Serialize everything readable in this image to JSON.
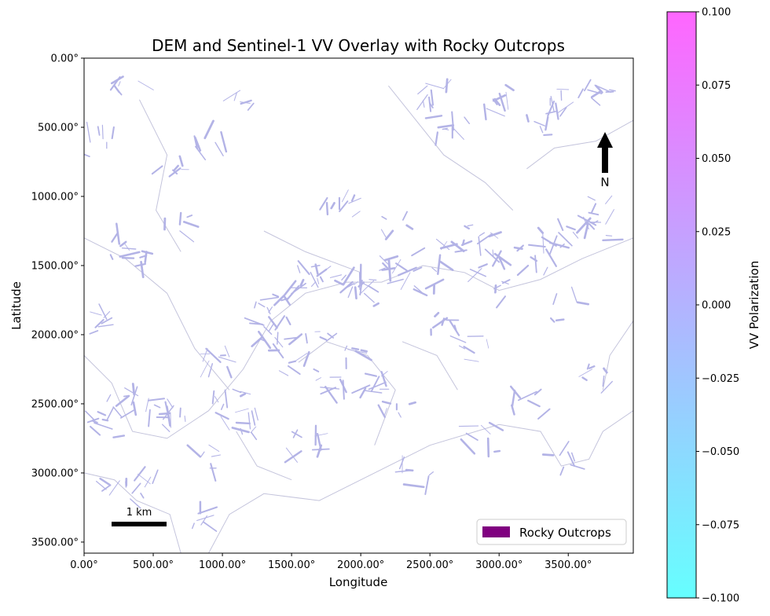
{
  "chart_data": {
    "type": "heatmap",
    "title": "DEM and Sentinel-1 VV Overlay with Rocky Outcrops",
    "xlabel": "Longitude",
    "ylabel": "Latitude",
    "xlim": [
      0,
      3970
    ],
    "ylim": [
      3580,
      0
    ],
    "x_ticks": [
      {
        "value": 0,
        "label": "0.00°"
      },
      {
        "value": 500,
        "label": "500.00°"
      },
      {
        "value": 1000,
        "label": "1000.00°"
      },
      {
        "value": 1500,
        "label": "1500.00°"
      },
      {
        "value": 2000,
        "label": "2000.00°"
      },
      {
        "value": 2500,
        "label": "2500.00°"
      },
      {
        "value": 3000,
        "label": "3000.00°"
      },
      {
        "value": 3500,
        "label": "3500.00°"
      }
    ],
    "y_ticks": [
      {
        "value": 0,
        "label": "0.00°"
      },
      {
        "value": 500,
        "label": "500.00°"
      },
      {
        "value": 1000,
        "label": "1000.00°"
      },
      {
        "value": 1500,
        "label": "1500.00°"
      },
      {
        "value": 2000,
        "label": "2000.00°"
      },
      {
        "value": 2500,
        "label": "2500.00°"
      },
      {
        "value": 3000,
        "label": "3000.00°"
      },
      {
        "value": 3500,
        "label": "3500.00°"
      }
    ],
    "overlay_color": "#b3b3e6",
    "legend": {
      "label": "Rocky Outcrops",
      "color": "#800080",
      "position": "lower-right"
    },
    "north_arrow": {
      "label": "N",
      "position": "upper-right"
    },
    "scale_bar": {
      "label": "1 km",
      "position": "lower-left"
    },
    "colorbar": {
      "label": "VV Polarization",
      "vmin": -0.1,
      "vmax": 0.1,
      "colormap": "cool",
      "color_low": "#66ffff",
      "color_mid": "#b3b3ff",
      "color_high": "#ff66ff",
      "ticks": [
        {
          "value": 0.1,
          "label": "0.100"
        },
        {
          "value": 0.075,
          "label": "0.075"
        },
        {
          "value": 0.05,
          "label": "0.050"
        },
        {
          "value": 0.025,
          "label": "0.025"
        },
        {
          "value": 0.0,
          "label": "0.000"
        },
        {
          "value": -0.025,
          "label": "−0.025"
        },
        {
          "value": -0.05,
          "label": "−0.050"
        },
        {
          "value": -0.075,
          "label": "−0.075"
        },
        {
          "value": -0.1,
          "label": "−0.100"
        }
      ]
    },
    "outcrop_patches": [
      {
        "x": 90,
        "y": 600
      },
      {
        "x": 180,
        "y": 1900
      },
      {
        "x": 260,
        "y": 1350
      },
      {
        "x": 350,
        "y": 250
      },
      {
        "x": 420,
        "y": 1450
      },
      {
        "x": 300,
        "y": 2480
      },
      {
        "x": 150,
        "y": 2650
      },
      {
        "x": 500,
        "y": 2540
      },
      {
        "x": 700,
        "y": 2600
      },
      {
        "x": 1050,
        "y": 2500
      },
      {
        "x": 1150,
        "y": 2650
      },
      {
        "x": 1000,
        "y": 2200
      },
      {
        "x": 1250,
        "y": 2000
      },
      {
        "x": 1350,
        "y": 1850
      },
      {
        "x": 1450,
        "y": 1720
      },
      {
        "x": 1650,
        "y": 1600
      },
      {
        "x": 1800,
        "y": 1550
      },
      {
        "x": 1950,
        "y": 1630
      },
      {
        "x": 2050,
        "y": 1700
      },
      {
        "x": 2150,
        "y": 1580
      },
      {
        "x": 2300,
        "y": 1480
      },
      {
        "x": 2450,
        "y": 1620
      },
      {
        "x": 2600,
        "y": 1450
      },
      {
        "x": 2700,
        "y": 1300
      },
      {
        "x": 2850,
        "y": 1350
      },
      {
        "x": 2950,
        "y": 1500
      },
      {
        "x": 3100,
        "y": 1700
      },
      {
        "x": 3250,
        "y": 1450
      },
      {
        "x": 3400,
        "y": 1300
      },
      {
        "x": 3600,
        "y": 1200
      },
      {
        "x": 3750,
        "y": 1100
      },
      {
        "x": 3880,
        "y": 1230
      },
      {
        "x": 3500,
        "y": 300
      },
      {
        "x": 3720,
        "y": 270
      },
      {
        "x": 3300,
        "y": 500
      },
      {
        "x": 1400,
        "y": 2100
      },
      {
        "x": 1550,
        "y": 2250
      },
      {
        "x": 1700,
        "y": 2000
      },
      {
        "x": 1900,
        "y": 2150
      },
      {
        "x": 2100,
        "y": 2350
      },
      {
        "x": 2250,
        "y": 2500
      },
      {
        "x": 1800,
        "y": 2400
      },
      {
        "x": 1600,
        "y": 2800
      },
      {
        "x": 900,
        "y": 2900
      },
      {
        "x": 800,
        "y": 3300
      },
      {
        "x": 500,
        "y": 3100
      },
      {
        "x": 250,
        "y": 3150
      },
      {
        "x": 2600,
        "y": 1900
      },
      {
        "x": 2800,
        "y": 2100
      },
      {
        "x": 3500,
        "y": 1800
      },
      {
        "x": 3700,
        "y": 2300
      },
      {
        "x": 3200,
        "y": 2500
      },
      {
        "x": 3450,
        "y": 2900
      },
      {
        "x": 2900,
        "y": 2750
      },
      {
        "x": 2400,
        "y": 3000
      },
      {
        "x": 600,
        "y": 800
      },
      {
        "x": 700,
        "y": 1200
      },
      {
        "x": 900,
        "y": 600
      },
      {
        "x": 1150,
        "y": 300
      },
      {
        "x": 2500,
        "y": 250
      },
      {
        "x": 2650,
        "y": 500
      },
      {
        "x": 3000,
        "y": 300
      },
      {
        "x": 2250,
        "y": 1200
      },
      {
        "x": 1850,
        "y": 1050
      }
    ],
    "contour_lines": [
      [
        [
          0,
          3000
        ],
        [
          220,
          3050
        ],
        [
          380,
          3200
        ],
        [
          620,
          3300
        ],
        [
          700,
          3580
        ]
      ],
      [
        [
          900,
          3580
        ],
        [
          1050,
          3300
        ],
        [
          1300,
          3150
        ],
        [
          1700,
          3200
        ],
        [
          2100,
          3000
        ],
        [
          2500,
          2800
        ],
        [
          3000,
          2650
        ],
        [
          3300,
          2700
        ],
        [
          3450,
          2950
        ],
        [
          3650,
          2900
        ],
        [
          3750,
          2700
        ],
        [
          3970,
          2550
        ]
      ],
      [
        [
          0,
          2150
        ],
        [
          200,
          2350
        ],
        [
          350,
          2700
        ],
        [
          600,
          2750
        ],
        [
          900,
          2550
        ],
        [
          1150,
          2250
        ],
        [
          1350,
          1900
        ],
        [
          1600,
          1700
        ],
        [
          1900,
          1620
        ],
        [
          2150,
          1620
        ],
        [
          2450,
          1500
        ],
        [
          2750,
          1550
        ],
        [
          3000,
          1680
        ],
        [
          3300,
          1600
        ],
        [
          3600,
          1450
        ],
        [
          3970,
          1300
        ]
      ],
      [
        [
          0,
          1300
        ],
        [
          300,
          1450
        ],
        [
          600,
          1700
        ],
        [
          800,
          2100
        ],
        [
          1050,
          2400
        ]
      ],
      [
        [
          1300,
          1250
        ],
        [
          1600,
          1400
        ],
        [
          2000,
          1550
        ]
      ],
      [
        [
          1550,
          2200
        ],
        [
          1750,
          2050
        ],
        [
          2050,
          2150
        ],
        [
          2250,
          2400
        ],
        [
          2100,
          2800
        ]
      ],
      [
        [
          3200,
          800
        ],
        [
          3400,
          650
        ],
        [
          3700,
          600
        ],
        [
          3970,
          450
        ]
      ],
      [
        [
          400,
          300
        ],
        [
          600,
          700
        ],
        [
          520,
          1100
        ],
        [
          700,
          1400
        ]
      ],
      [
        [
          2200,
          200
        ],
        [
          2600,
          700
        ],
        [
          2900,
          900
        ],
        [
          3100,
          1100
        ]
      ],
      [
        [
          1100,
          2700
        ],
        [
          1250,
          2950
        ],
        [
          1500,
          3050
        ]
      ],
      [
        [
          2300,
          2050
        ],
        [
          2550,
          2150
        ],
        [
          2700,
          2400
        ]
      ],
      [
        [
          3970,
          1900
        ],
        [
          3800,
          2150
        ],
        [
          3750,
          2400
        ]
      ]
    ]
  }
}
